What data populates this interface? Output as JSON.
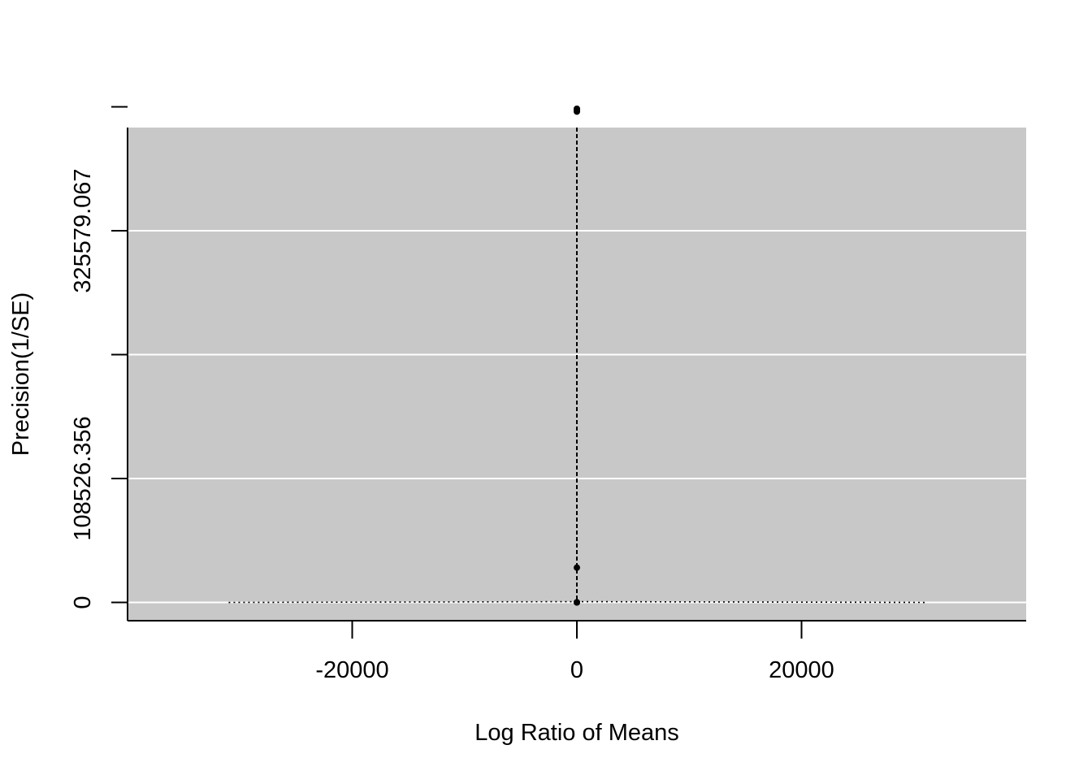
{
  "chart_data": {
    "type": "scatter",
    "subtype": "funnel",
    "title": "",
    "xlabel": "Log Ratio of Means",
    "ylabel": "Precision(1/SE)",
    "xlim": [
      -40000,
      40000
    ],
    "ylim": [
      -16000,
      416000
    ],
    "x_ticks": [
      {
        "value": -20000,
        "label": "-20000"
      },
      {
        "value": 0,
        "label": "0"
      },
      {
        "value": 20000,
        "label": "20000"
      }
    ],
    "y_ticks": [
      {
        "value": 0,
        "label": "0"
      },
      {
        "value": 108526.356,
        "label": "108526.356"
      },
      {
        "value": 217052.712,
        "label": ""
      },
      {
        "value": 325579.067,
        "label": "325579.067"
      },
      {
        "value": 434105.423,
        "label": ""
      }
    ],
    "gridlines": [
      0,
      108526.356,
      217052.712,
      325579.067,
      434105.423
    ],
    "grid": true,
    "panel_background": "#c8c8c8",
    "grid_color": "#ffffff",
    "points": [
      {
        "x": 0,
        "y": 0
      },
      {
        "x": 0,
        "y": 100
      },
      {
        "x": 0,
        "y": 30500
      },
      {
        "x": 0,
        "y": 432500
      },
      {
        "x": 0,
        "y": 431000
      },
      {
        "x": 0,
        "y": 430000
      }
    ],
    "reference_line": {
      "x": 0,
      "style": "dashed"
    },
    "funnel_lines": {
      "style": "dotted",
      "left": {
        "x_at_zero": -31000
      },
      "right": {
        "x_at_zero": 31000
      }
    }
  }
}
